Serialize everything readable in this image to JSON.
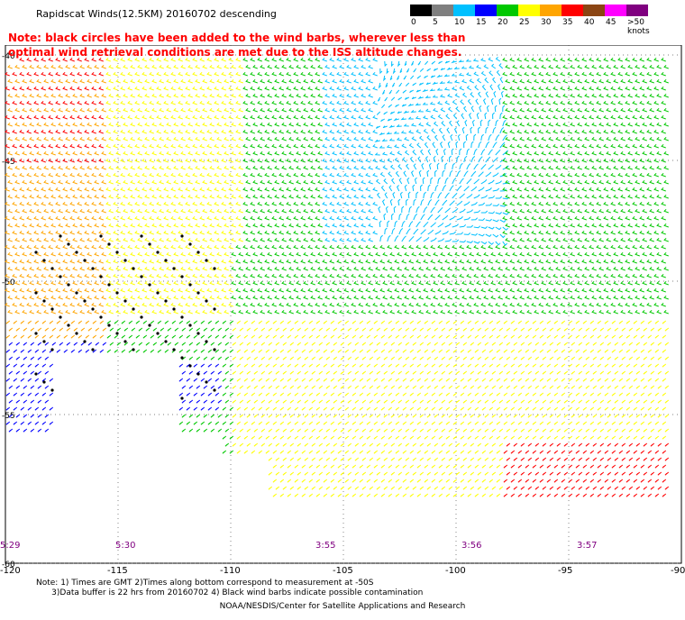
{
  "title": "Rapidscat Winds(12.5KM) 20160702 descending",
  "note": "Note: black circles have been added to the wind barbs, wherever less than\n      optimal wind retrieval conditions are met due to the ISS altitude changes.",
  "legend": {
    "labels": [
      "0",
      "5",
      "10",
      "15",
      "20",
      "25",
      "30",
      "35",
      "40",
      "45",
      ">50 knots"
    ],
    "colors": [
      "#000000",
      "#7f7f7f",
      "#00c0ff",
      "#0000ff",
      "#00c800",
      "#ffff00",
      "#ffa500",
      "#ff0000",
      "#8b4513",
      "#ff00ff",
      "#800080"
    ]
  },
  "lat_labels": [
    "-40",
    "-45",
    "-50",
    "-55",
    "-60"
  ],
  "lon_labels": [
    "-120",
    "-115",
    "-110",
    "-105",
    "-100",
    "-95",
    "-90"
  ],
  "time_labels": [
    "5:29",
    "5:30",
    "3:55",
    "3:56",
    "3:57"
  ],
  "footer": "Note: 1) Times are GMT 2)Times along bottom correspond to measurement at -50S\n      3)Data buffer is 22 hrs from 20160702 4) Black wind barbs indicate possible contamination",
  "credit": "NOAA/NESDIS/Center for Satellite Applications and Research"
}
